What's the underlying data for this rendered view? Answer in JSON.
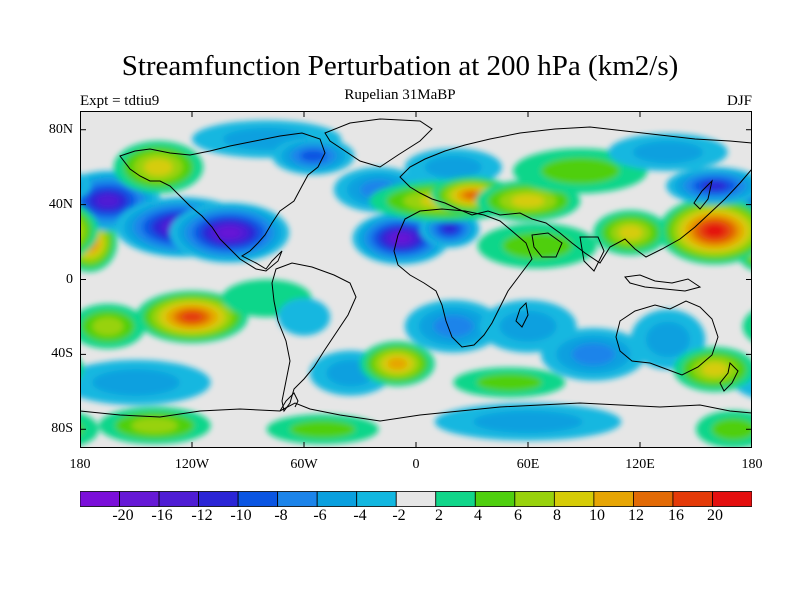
{
  "title": "Streamfunction Perturbation at 200 hPa (km2/s)",
  "subtitle": "Rupelian  31MaBP",
  "experiment": "Expt = tdtiu9",
  "season": "DJF",
  "colors": {
    "c0": "#7b0fd9",
    "c1": "#6619d6",
    "c2": "#4f1dd4",
    "c3": "#2b25d6",
    "c4": "#0a55e2",
    "c5": "#1c84ea",
    "c6": "#0aa0df",
    "c7": "#12b7e0",
    "c8": "#e6e6e6",
    "c9": "#11d68a",
    "c10": "#4fcf0f",
    "c11": "#98d20c",
    "c12": "#d6cc07",
    "c13": "#e6a504",
    "c14": "#e26a05",
    "c15": "#e43a08",
    "c16": "#e40f0f",
    "coast": "#000000"
  },
  "chart_data": {
    "type": "heatmap",
    "projection": "cylindrical equidistant",
    "variable": "Streamfunction Perturbation at 200 hPa",
    "units": "km2/s",
    "xlim": [
      -180,
      180
    ],
    "ylim": [
      -90,
      90
    ],
    "lat_ticks": [
      "80N",
      "40N",
      "0",
      "40S",
      "80S"
    ],
    "lon_ticks": [
      "180",
      "120W",
      "60W",
      "0",
      "60E",
      "120E",
      "180"
    ],
    "colorbar_labels": [
      "-20",
      "-16",
      "-12",
      "-10",
      "-8",
      "-6",
      "-4",
      "-2",
      "2",
      "4",
      "6",
      "8",
      "10",
      "12",
      "16",
      "20"
    ],
    "levels": [
      -20,
      -16,
      -12,
      -10,
      -8,
      -6,
      -4,
      -2,
      2,
      4,
      6,
      8,
      10,
      12,
      16,
      20
    ],
    "features": [
      {
        "lon": -175,
        "lat": 20,
        "value": 12,
        "w": 15,
        "h": 16
      },
      {
        "lon": -165,
        "lat": 42,
        "value": -14,
        "w": 28,
        "h": 16
      },
      {
        "lon": -125,
        "lat": 28,
        "value": -18,
        "w": 36,
        "h": 16
      },
      {
        "lon": -100,
        "lat": 25,
        "value": -18,
        "w": 32,
        "h": 16
      },
      {
        "lon": -138,
        "lat": 60,
        "value": 8,
        "w": 24,
        "h": 14
      },
      {
        "lon": -80,
        "lat": 75,
        "value": -6,
        "w": 40,
        "h": 10
      },
      {
        "lon": -55,
        "lat": 66,
        "value": -10,
        "w": 22,
        "h": 10
      },
      {
        "lon": -20,
        "lat": 48,
        "value": -8,
        "w": 24,
        "h": 12
      },
      {
        "lon": -8,
        "lat": 22,
        "value": -18,
        "w": 26,
        "h": 14
      },
      {
        "lon": 18,
        "lat": 27,
        "value": -12,
        "w": 16,
        "h": 10
      },
      {
        "lon": 20,
        "lat": 60,
        "value": -6,
        "w": 26,
        "h": 10
      },
      {
        "lon": 15,
        "lat": 42,
        "value": 8,
        "w": 40,
        "h": 11
      },
      {
        "lon": 30,
        "lat": 45,
        "value": 12,
        "w": 22,
        "h": 10
      },
      {
        "lon": 60,
        "lat": 42,
        "value": 8,
        "w": 28,
        "h": 11
      },
      {
        "lon": 88,
        "lat": 58,
        "value": 4,
        "w": 36,
        "h": 12
      },
      {
        "lon": 65,
        "lat": 18,
        "value": 5,
        "w": 32,
        "h": 12
      },
      {
        "lon": 115,
        "lat": 25,
        "value": 8,
        "w": 20,
        "h": 12
      },
      {
        "lon": 160,
        "lat": 26,
        "value": 20,
        "w": 30,
        "h": 18
      },
      {
        "lon": 160,
        "lat": 50,
        "value": -12,
        "w": 26,
        "h": 10
      },
      {
        "lon": 135,
        "lat": 68,
        "value": -6,
        "w": 32,
        "h": 10
      },
      {
        "lon": -120,
        "lat": -20,
        "value": 16,
        "w": 30,
        "h": 14
      },
      {
        "lon": -165,
        "lat": -25,
        "value": 6,
        "w": 20,
        "h": 12
      },
      {
        "lon": -80,
        "lat": -10,
        "value": 3,
        "w": 24,
        "h": 10
      },
      {
        "lon": -60,
        "lat": -20,
        "value": -4,
        "w": 14,
        "h": 10
      },
      {
        "lon": -35,
        "lat": -50,
        "value": -6,
        "w": 22,
        "h": 12
      },
      {
        "lon": -10,
        "lat": -45,
        "value": 10,
        "w": 20,
        "h": 12
      },
      {
        "lon": -150,
        "lat": -55,
        "value": -6,
        "w": 40,
        "h": 12
      },
      {
        "lon": 20,
        "lat": -25,
        "value": -8,
        "w": 26,
        "h": 14
      },
      {
        "lon": 60,
        "lat": -25,
        "value": -6,
        "w": 26,
        "h": 14
      },
      {
        "lon": 95,
        "lat": -40,
        "value": -8,
        "w": 28,
        "h": 14
      },
      {
        "lon": 135,
        "lat": -32,
        "value": -6,
        "w": 20,
        "h": 16
      },
      {
        "lon": 160,
        "lat": -48,
        "value": 9,
        "w": 22,
        "h": 12
      },
      {
        "lon": 50,
        "lat": -55,
        "value": 4,
        "w": 30,
        "h": 8
      },
      {
        "lon": -140,
        "lat": -78,
        "value": 6,
        "w": 30,
        "h": 10
      },
      {
        "lon": -50,
        "lat": -80,
        "value": 5,
        "w": 30,
        "h": 8
      },
      {
        "lon": 60,
        "lat": -76,
        "value": -6,
        "w": 50,
        "h": 10
      },
      {
        "lon": 170,
        "lat": -80,
        "value": 4,
        "w": 20,
        "h": 10
      }
    ]
  }
}
